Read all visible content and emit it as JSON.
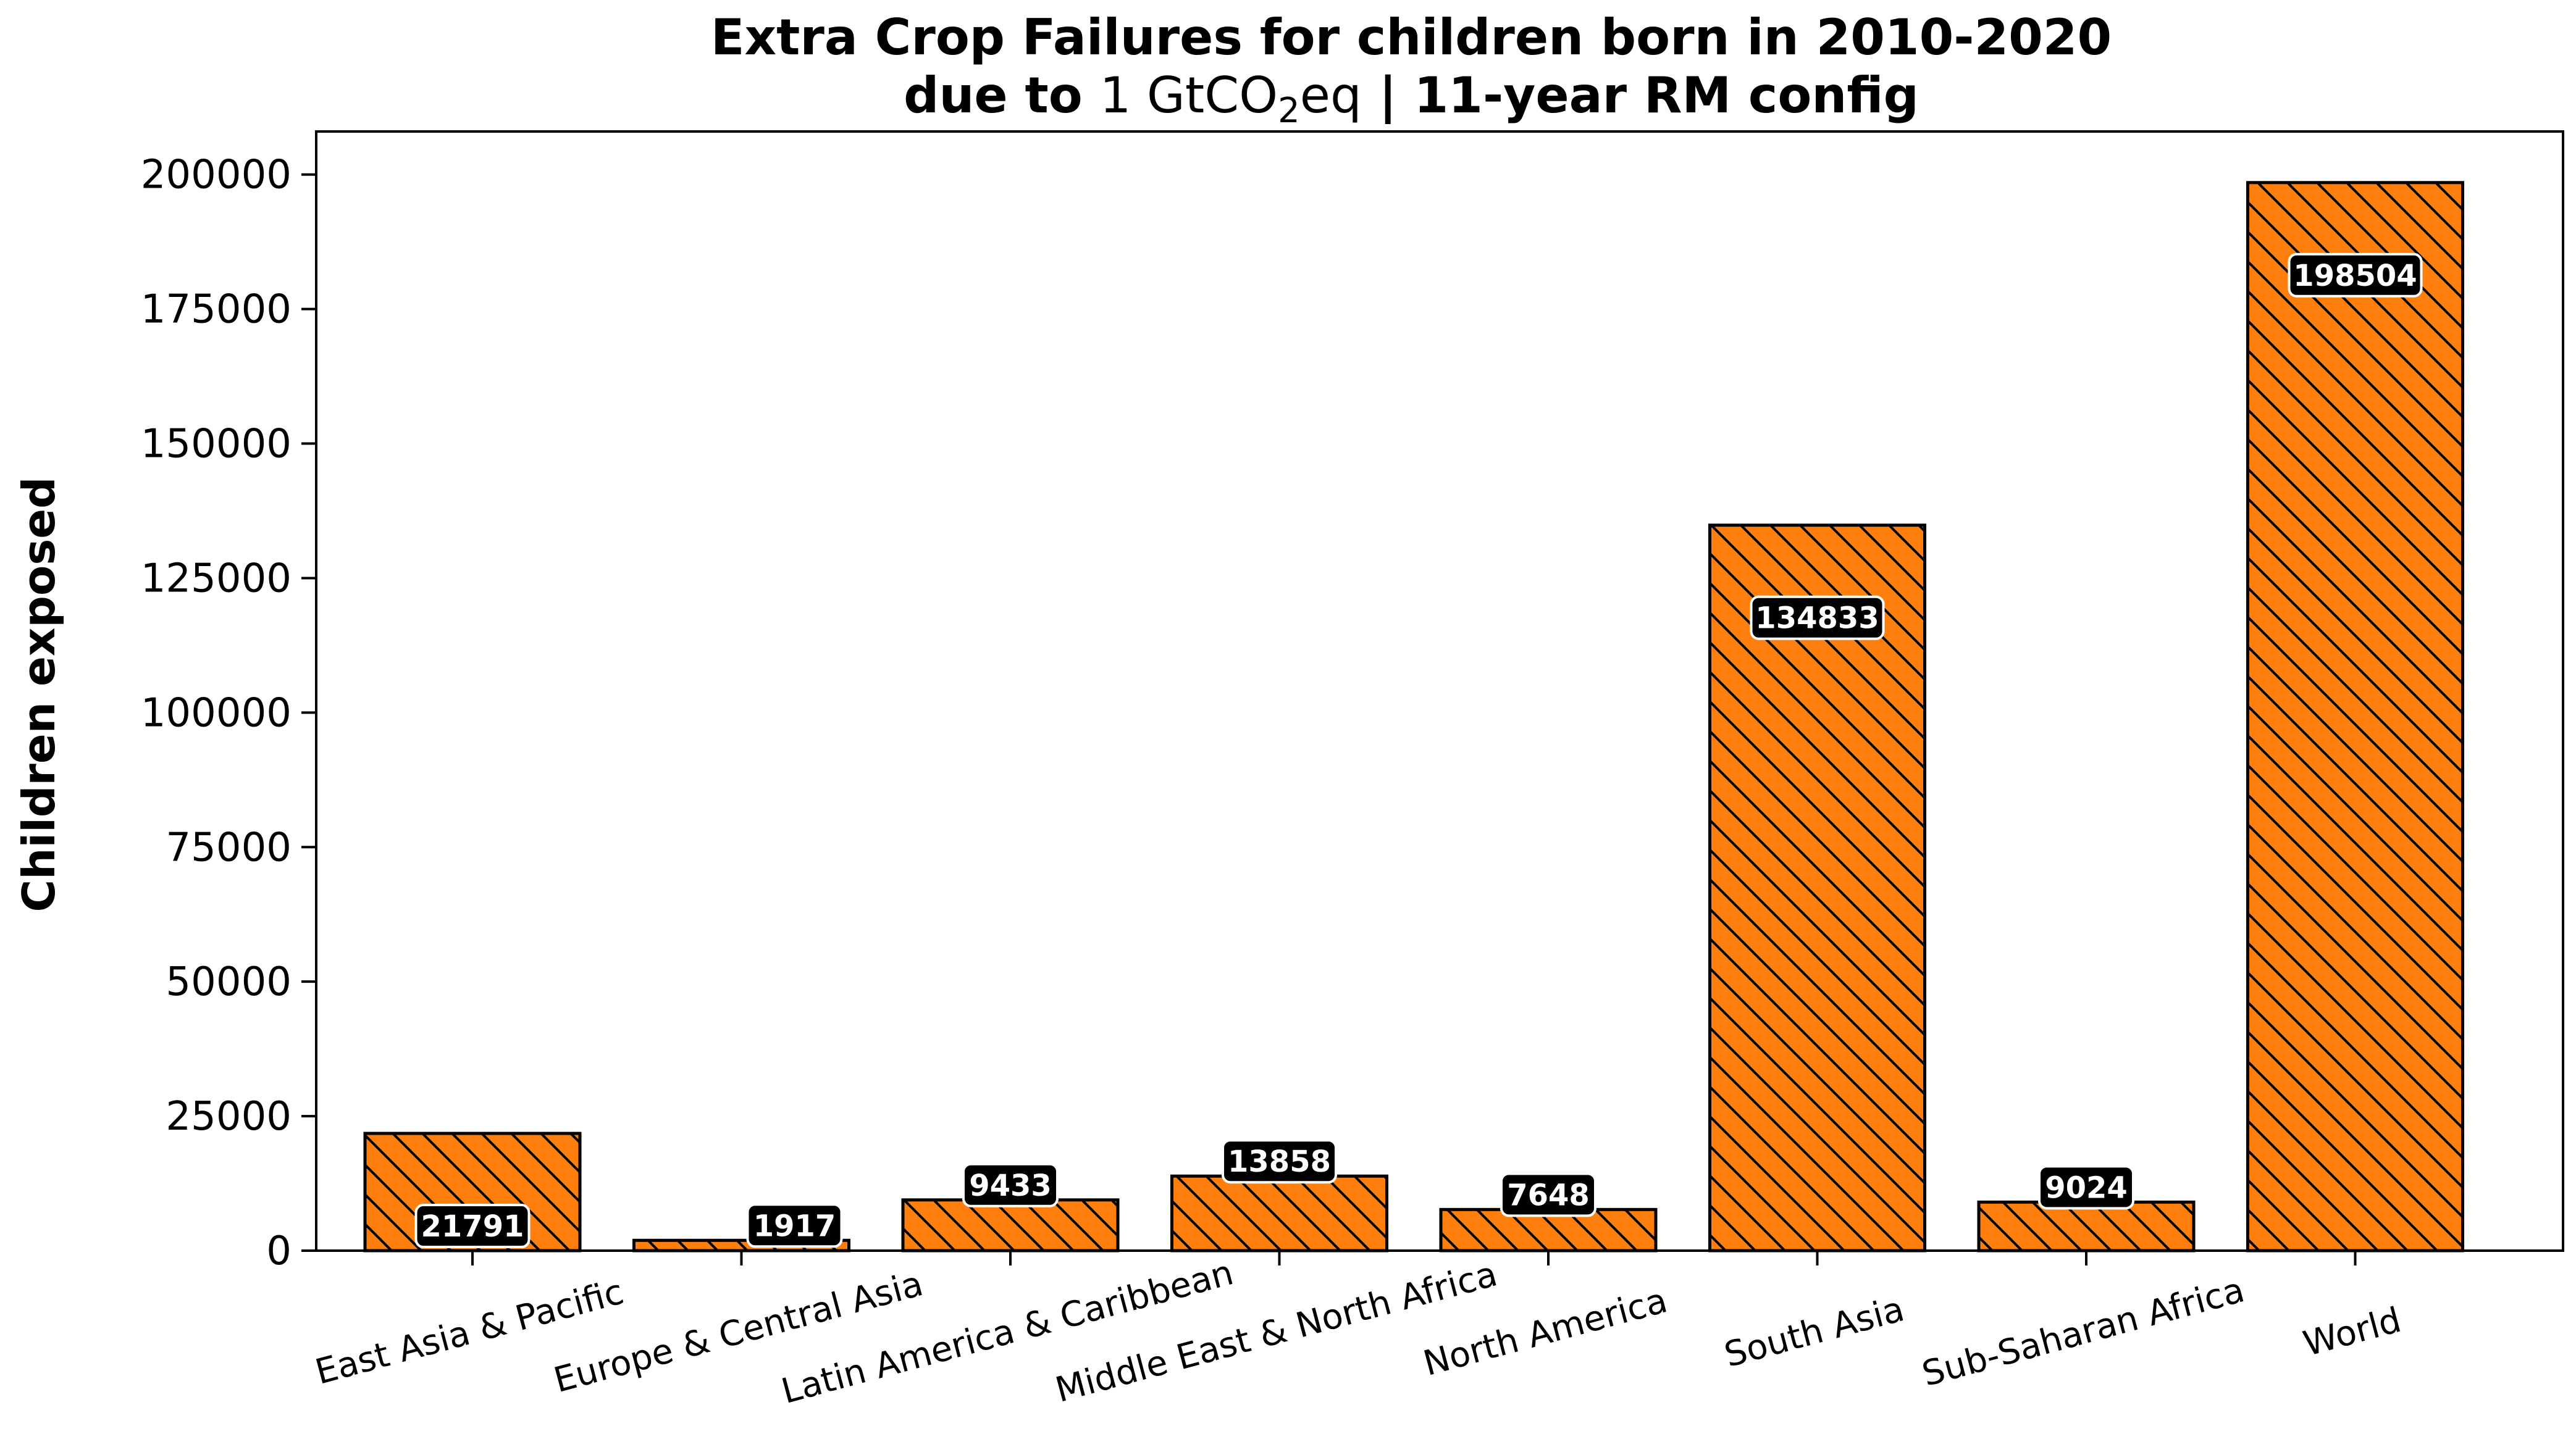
{
  "chart_data": {
    "type": "bar",
    "title_line1": "Extra Crop Failures for children born in 2010-2020",
    "title_line2_prefix": "due to ",
    "title_line2_math": "1 GtCO",
    "title_line2_sub": "2",
    "title_line2_math_suffix": "eq",
    "title_line2_suffix": " | 11-year RM config",
    "xlabel": "",
    "ylabel": "Children exposed",
    "categories": [
      "East Asia & Pacific",
      "Europe & Central Asia",
      "Latin America & Caribbean",
      "Middle East & North Africa",
      "North America",
      "South Asia",
      "Sub-Saharan Africa",
      "World"
    ],
    "values": [
      21791,
      1917,
      9433,
      13858,
      7648,
      134833,
      9024,
      198504
    ],
    "data_labels": [
      "21791",
      "1917",
      "9433",
      "13858",
      "7648",
      "134833",
      "9024",
      "198504"
    ],
    "ylim": [
      0,
      208000
    ],
    "yticks": [
      0,
      25000,
      50000,
      75000,
      100000,
      125000,
      150000,
      175000,
      200000
    ],
    "ytick_labels": [
      "0",
      "25000",
      "50000",
      "75000",
      "100000",
      "125000",
      "150000",
      "175000",
      "200000"
    ],
    "bar_color": "#ff7f0e",
    "edge_color": "#000000",
    "hatch": "diagonal",
    "label_box_color": "#000000",
    "label_text_color": "#ffffff",
    "grid": false,
    "legend": "none"
  }
}
